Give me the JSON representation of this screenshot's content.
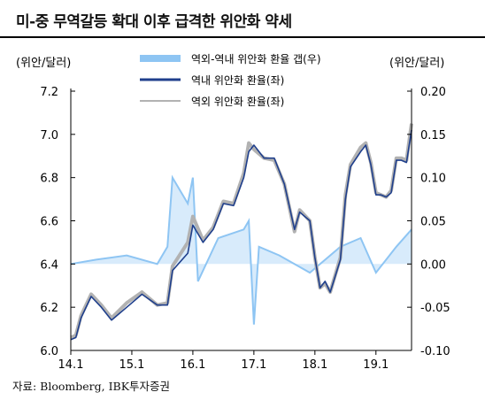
{
  "title": "미-중 무역갈등 확대 이후 급격한 위안화 약세",
  "source": "자료: Bloomberg, IBK투자증권",
  "colors": {
    "gap": "#8ec5f3",
    "onshore": "#1f3f8c",
    "offshore": "#b2b2b2"
  },
  "chart_data": {
    "type": "line",
    "y_left_label": "(위안/달러)",
    "y_right_label": "(위안/달러)",
    "y_left_range": [
      6.0,
      7.2
    ],
    "y_right_range": [
      -0.1,
      0.2
    ],
    "y_left_ticks": [
      "7.2",
      "7.0",
      "6.8",
      "6.6",
      "6.4",
      "6.2",
      "6.0"
    ],
    "y_right_ticks": [
      "0.20",
      "0.15",
      "0.10",
      "0.05",
      "0.00",
      "-0.05",
      "-0.10"
    ],
    "x_tick_labels": [
      "14.1",
      "15.1",
      "16.1",
      "17.1",
      "18.1",
      "19.1"
    ],
    "x_ticks": [
      "2014-01",
      "2015-01",
      "2016-01",
      "2017-01",
      "2018-01",
      "2019-01"
    ],
    "x_range": [
      "2014-01",
      "2019-08"
    ],
    "legend": [
      {
        "name": "역외-역내 위안화 환율 갭(우)",
        "key": "gap"
      },
      {
        "name": "역내 위안화 환율(좌)",
        "key": "onshore"
      },
      {
        "name": "역외 위안화 환율(좌)",
        "key": "offshore"
      }
    ],
    "series": [
      {
        "name": "역내 위안화 환율(좌)",
        "axis": "left",
        "x": [
          "2014-01",
          "2014-02",
          "2014-03",
          "2014-05",
          "2014-07",
          "2014-09",
          "2014-12",
          "2015-03",
          "2015-06",
          "2015-08",
          "2015-09",
          "2015-12",
          "2016-01",
          "2016-03",
          "2016-05",
          "2016-07",
          "2016-09",
          "2016-11",
          "2016-12",
          "2017-01",
          "2017-03",
          "2017-05",
          "2017-07",
          "2017-09",
          "2017-10",
          "2017-12",
          "2018-01",
          "2018-02",
          "2018-03",
          "2018-04",
          "2018-06",
          "2018-07",
          "2018-08",
          "2018-10",
          "2018-11",
          "2018-12",
          "2019-01",
          "2019-02",
          "2019-03",
          "2019-04",
          "2019-05",
          "2019-06",
          "2019-07",
          "2019-08"
        ],
        "values": [
          6.05,
          6.06,
          6.15,
          6.25,
          6.2,
          6.14,
          6.2,
          6.26,
          6.21,
          6.21,
          6.37,
          6.45,
          6.58,
          6.5,
          6.56,
          6.68,
          6.67,
          6.8,
          6.92,
          6.95,
          6.89,
          6.89,
          6.77,
          6.56,
          6.64,
          6.6,
          6.43,
          6.29,
          6.32,
          6.27,
          6.42,
          6.7,
          6.85,
          6.92,
          6.95,
          6.86,
          6.72,
          6.72,
          6.71,
          6.73,
          6.88,
          6.88,
          6.87,
          7.02
        ]
      },
      {
        "name": "역외 위안화 환율(좌)",
        "axis": "left",
        "x": [
          "2014-01",
          "2014-02",
          "2014-03",
          "2014-05",
          "2014-07",
          "2014-09",
          "2014-12",
          "2015-03",
          "2015-06",
          "2015-08",
          "2015-09",
          "2015-12",
          "2016-01",
          "2016-03",
          "2016-05",
          "2016-07",
          "2016-09",
          "2016-11",
          "2016-12",
          "2017-01",
          "2017-03",
          "2017-05",
          "2017-07",
          "2017-09",
          "2017-10",
          "2017-12",
          "2018-01",
          "2018-02",
          "2018-03",
          "2018-04",
          "2018-06",
          "2018-07",
          "2018-08",
          "2018-10",
          "2018-11",
          "2018-12",
          "2019-01",
          "2019-02",
          "2019-03",
          "2019-04",
          "2019-05",
          "2019-06",
          "2019-07",
          "2019-08"
        ],
        "values": [
          6.06,
          6.07,
          6.16,
          6.26,
          6.21,
          6.15,
          6.22,
          6.27,
          6.21,
          6.22,
          6.39,
          6.5,
          6.62,
          6.51,
          6.57,
          6.69,
          6.68,
          6.82,
          6.96,
          6.93,
          6.89,
          6.88,
          6.77,
          6.55,
          6.65,
          6.6,
          6.43,
          6.29,
          6.31,
          6.27,
          6.43,
          6.72,
          6.86,
          6.94,
          6.96,
          6.87,
          6.73,
          6.72,
          6.71,
          6.74,
          6.89,
          6.89,
          6.88,
          7.05
        ]
      },
      {
        "name": "역외-역내 위안화 환율 갭(우)",
        "axis": "right",
        "x": [
          "2014-01",
          "2014-06",
          "2014-12",
          "2015-06",
          "2015-08",
          "2015-09",
          "2015-12",
          "2016-01",
          "2016-02",
          "2016-06",
          "2016-11",
          "2016-12",
          "2017-01",
          "2017-02",
          "2017-06",
          "2017-12",
          "2018-06",
          "2018-10",
          "2019-01",
          "2019-05",
          "2019-08"
        ],
        "values": [
          0.0,
          0.005,
          0.01,
          0.0,
          0.02,
          0.1,
          0.07,
          0.1,
          -0.02,
          0.03,
          0.04,
          0.05,
          -0.07,
          0.02,
          0.01,
          -0.01,
          0.02,
          0.03,
          -0.01,
          0.02,
          0.04
        ]
      }
    ]
  }
}
